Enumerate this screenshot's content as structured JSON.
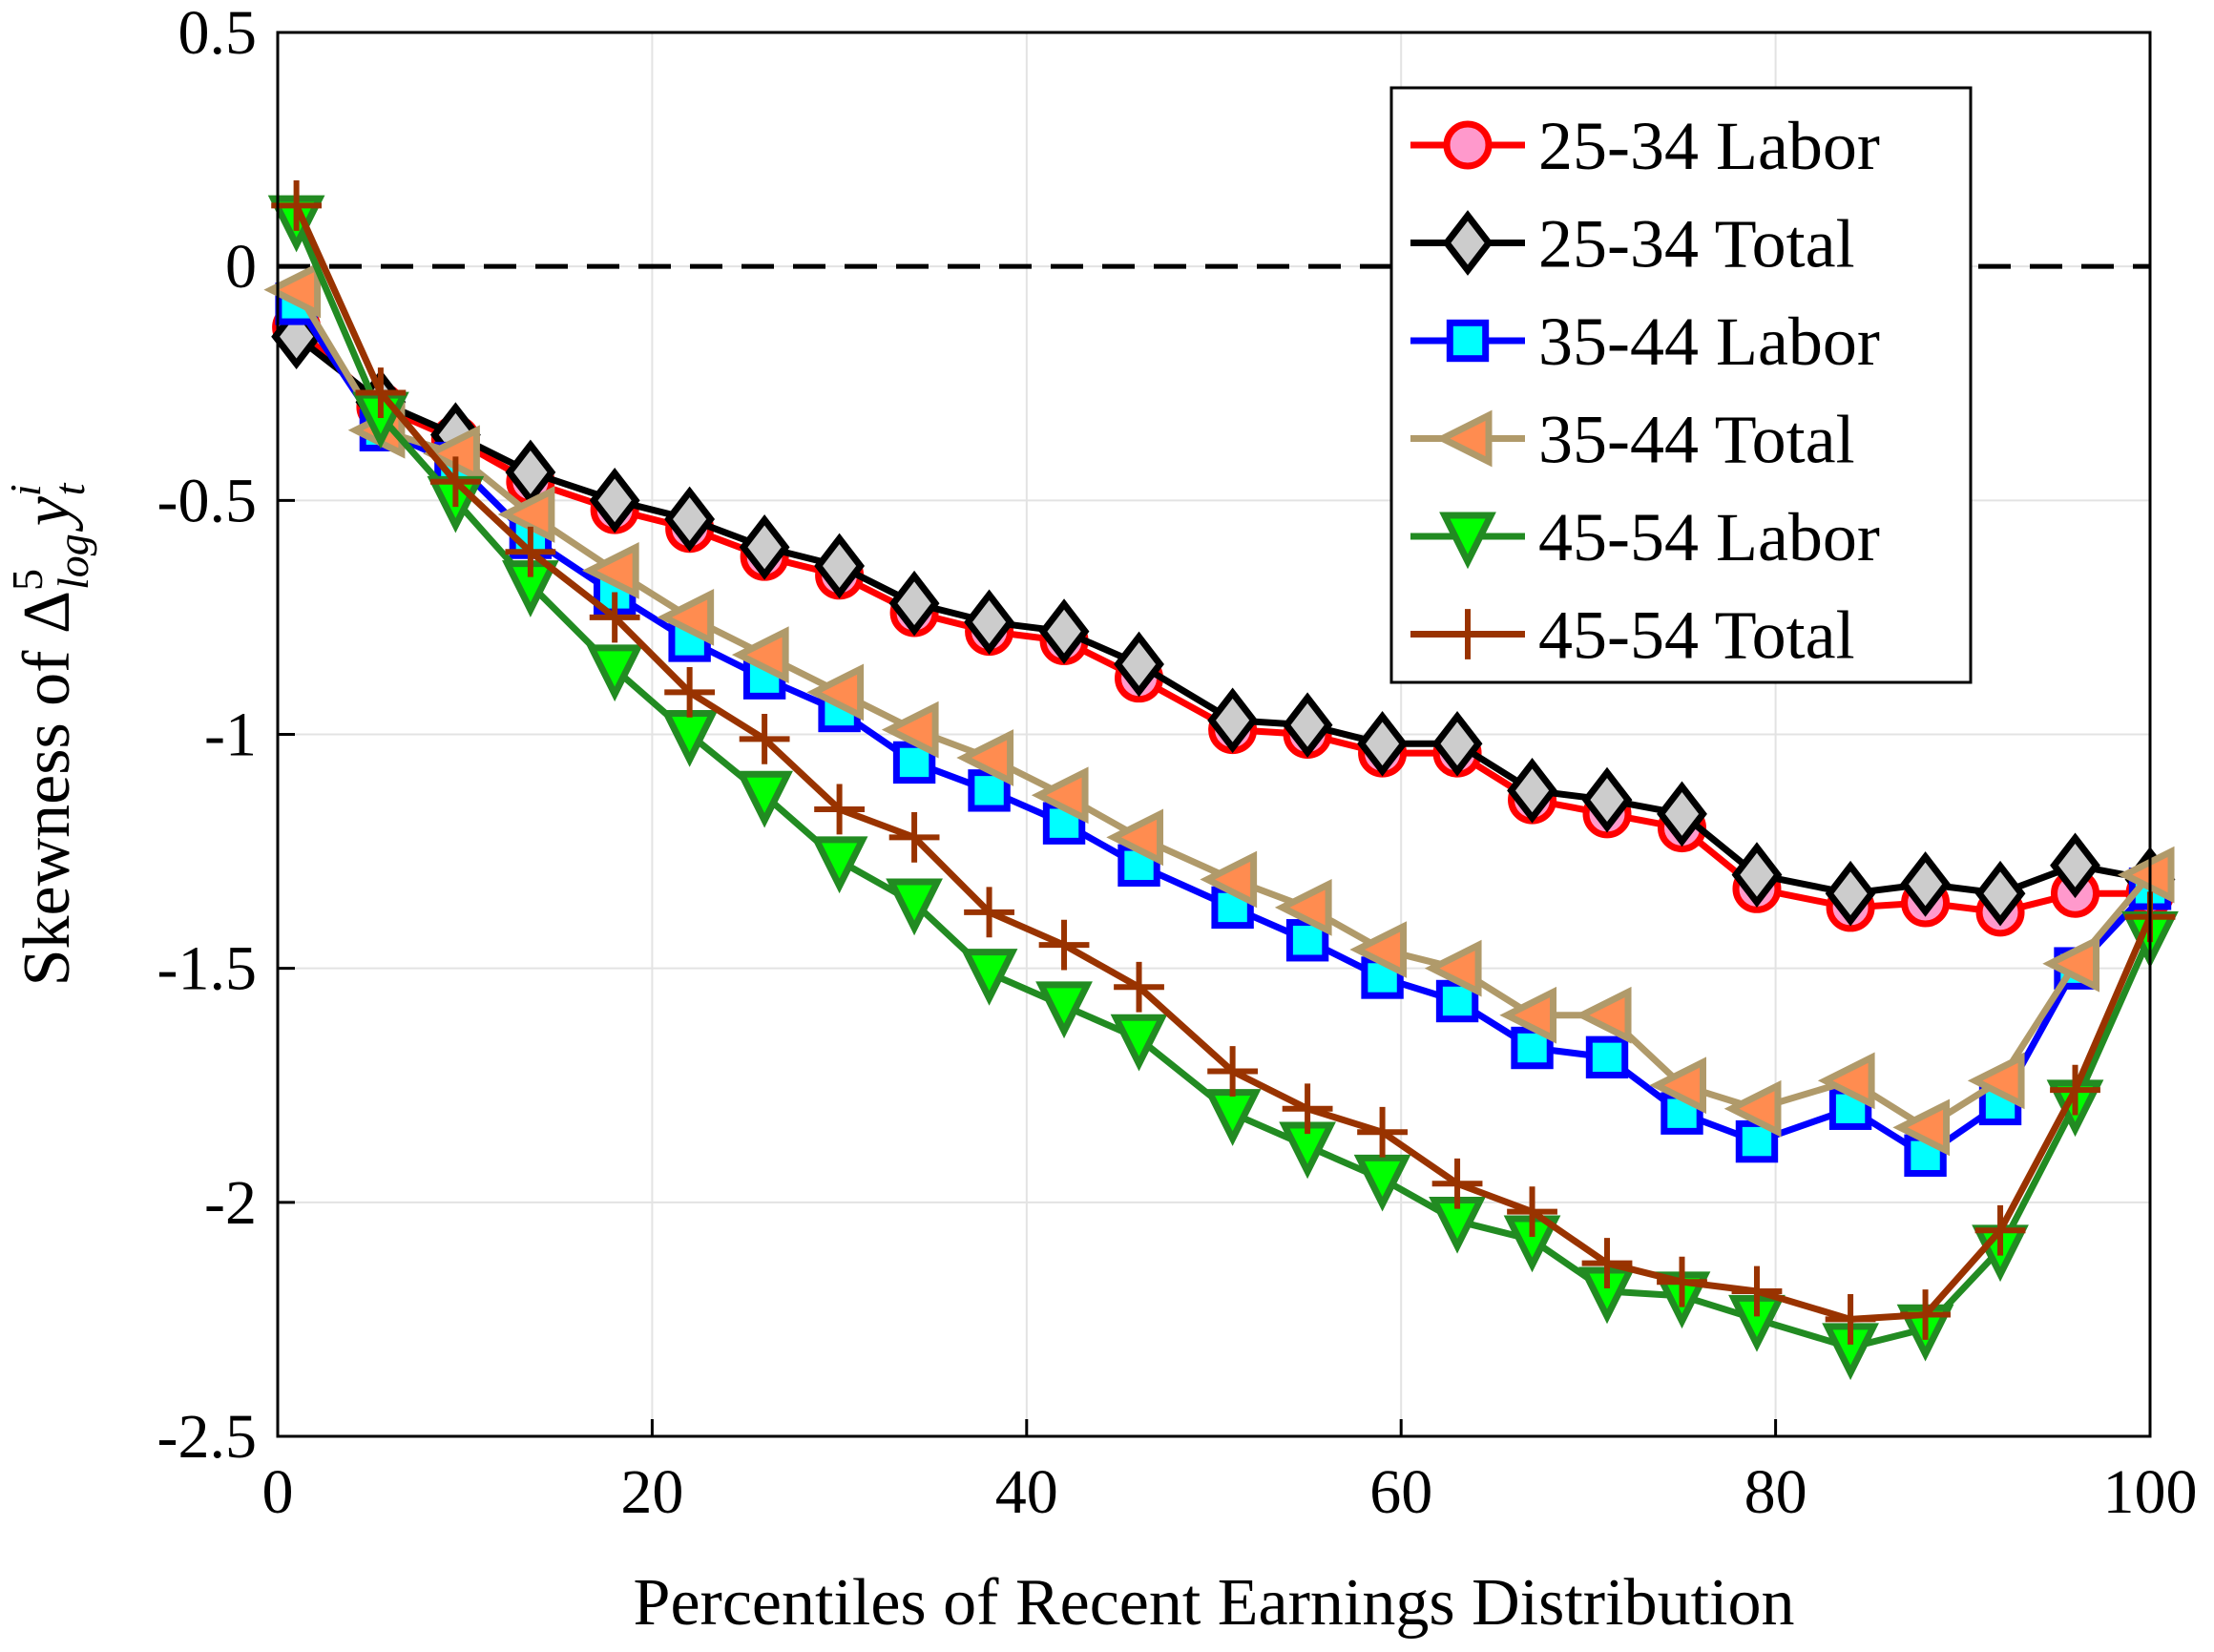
{
  "chart_data": {
    "type": "line",
    "xlabel": "Percentiles of Recent Earnings Distribution",
    "ylabel": {
      "prefix": "Skewness of ",
      "symbol": "Δ",
      "sup": "5",
      "sub": "log",
      "var": "y",
      "var_sup": "i",
      "var_sub": "t"
    },
    "xlim": [
      0,
      100
    ],
    "ylim": [
      -2.5,
      0.5
    ],
    "xticks": [
      "0",
      "20",
      "40",
      "60",
      "80",
      "100"
    ],
    "yticks": [
      "0.5",
      "0",
      "-0.5",
      "-1",
      "-1.5",
      "-2",
      "-2.5"
    ],
    "grid": true,
    "reference_line": {
      "y": 0,
      "style": "dashed"
    },
    "legend_position": "top-right",
    "x": [
      1,
      5.5,
      9.5,
      13.5,
      18,
      22,
      26,
      30,
      34,
      38,
      42,
      46,
      51,
      55,
      59,
      63,
      67,
      71,
      75,
      79,
      84,
      88,
      92,
      96,
      100
    ],
    "series": [
      {
        "name": "25-34 Labor",
        "marker": "circle",
        "color": "#ff0000",
        "fill": "#ff99cc",
        "values": [
          -0.13,
          -0.3,
          -0.37,
          -0.46,
          -0.52,
          -0.56,
          -0.62,
          -0.66,
          -0.74,
          -0.78,
          -0.8,
          -0.88,
          -0.99,
          -1.0,
          -1.04,
          -1.04,
          -1.14,
          -1.17,
          -1.2,
          -1.33,
          -1.37,
          -1.36,
          -1.38,
          -1.34,
          -1.34
        ]
      },
      {
        "name": "25-34 Total",
        "marker": "diamond",
        "color": "#000000",
        "fill": "#cccccc",
        "values": [
          -0.15,
          -0.29,
          -0.36,
          -0.44,
          -0.5,
          -0.54,
          -0.6,
          -0.64,
          -0.72,
          -0.76,
          -0.78,
          -0.85,
          -0.97,
          -0.98,
          -1.02,
          -1.02,
          -1.12,
          -1.14,
          -1.17,
          -1.3,
          -1.34,
          -1.32,
          -1.34,
          -1.28,
          -1.31
        ]
      },
      {
        "name": "35-44 Labor",
        "marker": "square",
        "color": "#0000ff",
        "fill": "#00ffff",
        "values": [
          -0.08,
          -0.35,
          -0.42,
          -0.58,
          -0.7,
          -0.8,
          -0.88,
          -0.95,
          -1.06,
          -1.12,
          -1.19,
          -1.28,
          -1.37,
          -1.44,
          -1.52,
          -1.57,
          -1.67,
          -1.69,
          -1.81,
          -1.87,
          -1.8,
          -1.9,
          -1.79,
          -1.5,
          -1.33
        ]
      },
      {
        "name": "35-44 Total",
        "marker": "triangle-left",
        "color": "#b09a6a",
        "fill": "#ff8c50",
        "values": [
          -0.05,
          -0.35,
          -0.4,
          -0.53,
          -0.65,
          -0.75,
          -0.83,
          -0.91,
          -0.99,
          -1.05,
          -1.13,
          -1.22,
          -1.31,
          -1.37,
          -1.46,
          -1.5,
          -1.6,
          -1.6,
          -1.75,
          -1.8,
          -1.74,
          -1.84,
          -1.74,
          -1.49,
          -1.3
        ]
      },
      {
        "name": "45-54 Labor",
        "marker": "triangle-down",
        "color": "#228b22",
        "fill": "#00ff00",
        "values": [
          0.1,
          -0.32,
          -0.5,
          -0.68,
          -0.86,
          -1.0,
          -1.13,
          -1.27,
          -1.36,
          -1.51,
          -1.58,
          -1.65,
          -1.81,
          -1.88,
          -1.95,
          -2.04,
          -2.08,
          -2.19,
          -2.2,
          -2.25,
          -2.31,
          -2.27,
          -2.1,
          -1.79,
          -1.43
        ]
      },
      {
        "name": "45-54 Total",
        "marker": "plus",
        "color": "#993300",
        "fill": "none",
        "values": [
          0.13,
          -0.27,
          -0.46,
          -0.61,
          -0.75,
          -0.91,
          -1.01,
          -1.16,
          -1.22,
          -1.38,
          -1.45,
          -1.54,
          -1.72,
          -1.8,
          -1.85,
          -1.96,
          -2.02,
          -2.13,
          -2.17,
          -2.19,
          -2.25,
          -2.24,
          -2.06,
          -1.76,
          -1.39
        ]
      }
    ]
  }
}
